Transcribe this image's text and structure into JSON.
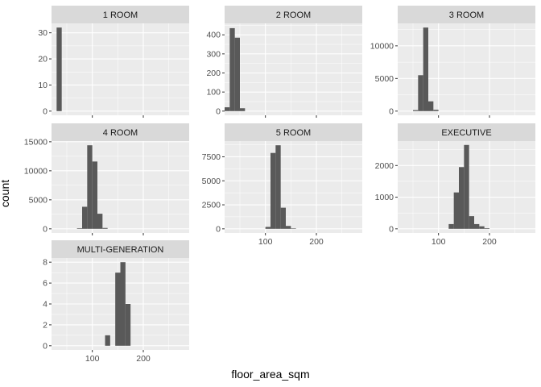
{
  "chart_data": {
    "type": "bar",
    "subtype": "faceted-histogram",
    "xlabel": "floor_area_sqm",
    "ylabel": "count",
    "xlim": [
      20,
      290
    ],
    "x_ticks": [
      100,
      200
    ],
    "x_tick_labels": [
      "100",
      "200"
    ],
    "bin_width": 10,
    "grid": true,
    "colors": {
      "panel_bg": "#ebebeb",
      "strip_bg": "#d9d9d9",
      "grid_major": "#ffffff",
      "bar": "#595959",
      "axis_text": "#4d4d4d",
      "strip_text": "#1a1a1a"
    },
    "panels": [
      {
        "name": "1 ROOM",
        "ylim": [
          -1.6,
          33.6
        ],
        "y_ticks": [
          0,
          10,
          20,
          30
        ],
        "y_tick_labels": [
          "0",
          "10",
          "20",
          "30"
        ],
        "bins": [
          {
            "x0": 30,
            "x1": 40,
            "count": 32
          }
        ]
      },
      {
        "name": "2 ROOM",
        "ylim": [
          -22,
          460
        ],
        "y_ticks": [
          0,
          100,
          200,
          300,
          400
        ],
        "y_tick_labels": [
          "0",
          "100",
          "200",
          "300",
          "400"
        ],
        "bins": [
          {
            "x0": 20,
            "x1": 30,
            "count": 20
          },
          {
            "x0": 30,
            "x1": 40,
            "count": 435
          },
          {
            "x0": 40,
            "x1": 50,
            "count": 385
          },
          {
            "x0": 50,
            "x1": 60,
            "count": 15
          }
        ]
      },
      {
        "name": "3 ROOM",
        "ylim": [
          -640,
          13440
        ],
        "y_ticks": [
          0,
          5000,
          10000
        ],
        "y_tick_labels": [
          "0",
          "5000",
          "10000"
        ],
        "bins": [
          {
            "x0": 50,
            "x1": 60,
            "count": 150
          },
          {
            "x0": 60,
            "x1": 70,
            "count": 5500
          },
          {
            "x0": 70,
            "x1": 80,
            "count": 12800
          },
          {
            "x0": 80,
            "x1": 90,
            "count": 1500
          },
          {
            "x0": 90,
            "x1": 100,
            "count": 200
          }
        ]
      },
      {
        "name": "4 ROOM",
        "ylim": [
          -720,
          15120
        ],
        "y_ticks": [
          0,
          5000,
          10000,
          15000
        ],
        "y_tick_labels": [
          "0",
          "5000",
          "10000",
          "15000"
        ],
        "bins": [
          {
            "x0": 70,
            "x1": 80,
            "count": 100
          },
          {
            "x0": 80,
            "x1": 90,
            "count": 3800
          },
          {
            "x0": 90,
            "x1": 100,
            "count": 14400
          },
          {
            "x0": 100,
            "x1": 110,
            "count": 11600
          },
          {
            "x0": 110,
            "x1": 120,
            "count": 2600
          },
          {
            "x0": 120,
            "x1": 130,
            "count": 150
          }
        ]
      },
      {
        "name": "5 ROOM",
        "ylim": [
          -435,
          9135
        ],
        "y_ticks": [
          0,
          2500,
          5000,
          7500
        ],
        "y_tick_labels": [
          "0",
          "2500",
          "5000",
          "7500"
        ],
        "bins": [
          {
            "x0": 100,
            "x1": 110,
            "count": 200
          },
          {
            "x0": 110,
            "x1": 120,
            "count": 7900
          },
          {
            "x0": 120,
            "x1": 130,
            "count": 8700
          },
          {
            "x0": 130,
            "x1": 140,
            "count": 2200
          },
          {
            "x0": 140,
            "x1": 150,
            "count": 300
          },
          {
            "x0": 150,
            "x1": 160,
            "count": 50
          }
        ]
      },
      {
        "name": "EXECUTIVE",
        "ylim": [
          -132,
          2772
        ],
        "y_ticks": [
          0,
          1000,
          2000
        ],
        "y_tick_labels": [
          "0",
          "1000",
          "2000"
        ],
        "bins": [
          {
            "x0": 120,
            "x1": 130,
            "count": 150
          },
          {
            "x0": 130,
            "x1": 140,
            "count": 1150
          },
          {
            "x0": 140,
            "x1": 150,
            "count": 1950
          },
          {
            "x0": 150,
            "x1": 160,
            "count": 2650
          },
          {
            "x0": 160,
            "x1": 170,
            "count": 400
          },
          {
            "x0": 170,
            "x1": 180,
            "count": 150
          },
          {
            "x0": 180,
            "x1": 190,
            "count": 80
          },
          {
            "x0": 190,
            "x1": 200,
            "count": 20
          }
        ]
      },
      {
        "name": "MULTI-GENERATION",
        "ylim": [
          -0.4,
          8.4
        ],
        "y_ticks": [
          0,
          2,
          4,
          6,
          8
        ],
        "y_tick_labels": [
          "0",
          "2",
          "4",
          "6",
          "8"
        ],
        "bins": [
          {
            "x0": 125,
            "x1": 135,
            "count": 1
          },
          {
            "x0": 145,
            "x1": 155,
            "count": 7
          },
          {
            "x0": 155,
            "x1": 165,
            "count": 8
          },
          {
            "x0": 165,
            "x1": 175,
            "count": 4
          }
        ]
      }
    ]
  }
}
